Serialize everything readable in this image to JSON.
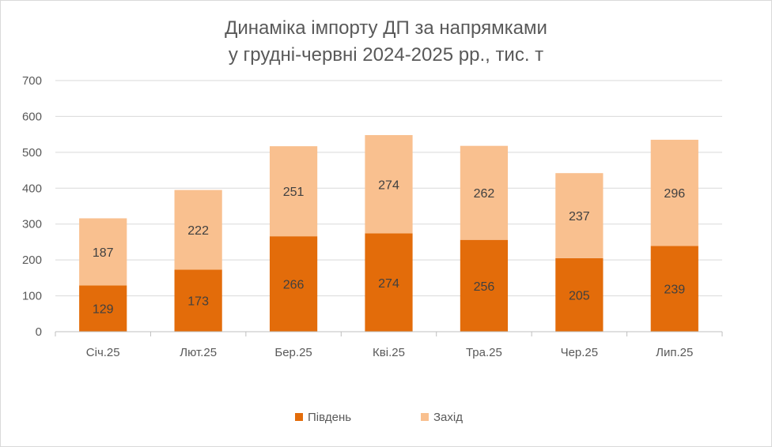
{
  "chart_data": {
    "type": "bar",
    "stacked": true,
    "title_lines": [
      "Динаміка імпорту ДП за напрямками",
      "у грудні-червні 2024-2025 рр., тис. т"
    ],
    "categories": [
      "Січ.25",
      "Лют.25",
      "Бер.25",
      "Кві.25",
      "Тра.25",
      "Чер.25",
      "Лип.25"
    ],
    "series": [
      {
        "name": "Південь",
        "color": "#e36c0a",
        "values": [
          129,
          173,
          266,
          274,
          256,
          205,
          239
        ]
      },
      {
        "name": "Захід",
        "color": "#f9c08f",
        "values": [
          187,
          222,
          251,
          274,
          262,
          237,
          296
        ]
      }
    ],
    "ylim": [
      0,
      700
    ],
    "yticks": [
      0,
      100,
      200,
      300,
      400,
      500,
      600,
      700
    ],
    "ytick_labels": [
      "0",
      "100",
      "200",
      "300",
      "400",
      "500",
      "600",
      "700"
    ],
    "grid": true,
    "legend_position": "bottom"
  }
}
